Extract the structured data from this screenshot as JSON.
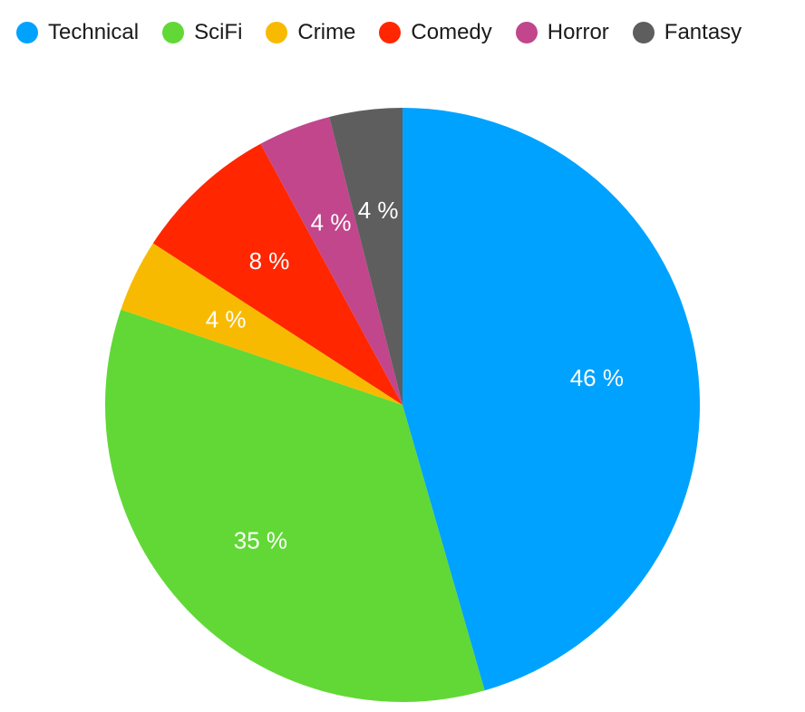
{
  "chart_data": {
    "type": "pie",
    "title": "",
    "legend_position": "top",
    "slices": [
      {
        "label": "Technical",
        "value": 46,
        "value_label": "46 %",
        "color": "#00A2FF"
      },
      {
        "label": "SciFi",
        "value": 35,
        "value_label": "35 %",
        "color": "#61D836"
      },
      {
        "label": "Crime",
        "value": 4,
        "value_label": "4 %",
        "color": "#F8BA00"
      },
      {
        "label": "Comedy",
        "value": 8,
        "value_label": "8 %",
        "color": "#FF2600"
      },
      {
        "label": "Horror",
        "value": 4,
        "value_label": "4 %",
        "color": "#C1468C"
      },
      {
        "label": "Fantasy",
        "value": 4,
        "value_label": "4 %",
        "color": "#5E5E5E"
      }
    ]
  }
}
